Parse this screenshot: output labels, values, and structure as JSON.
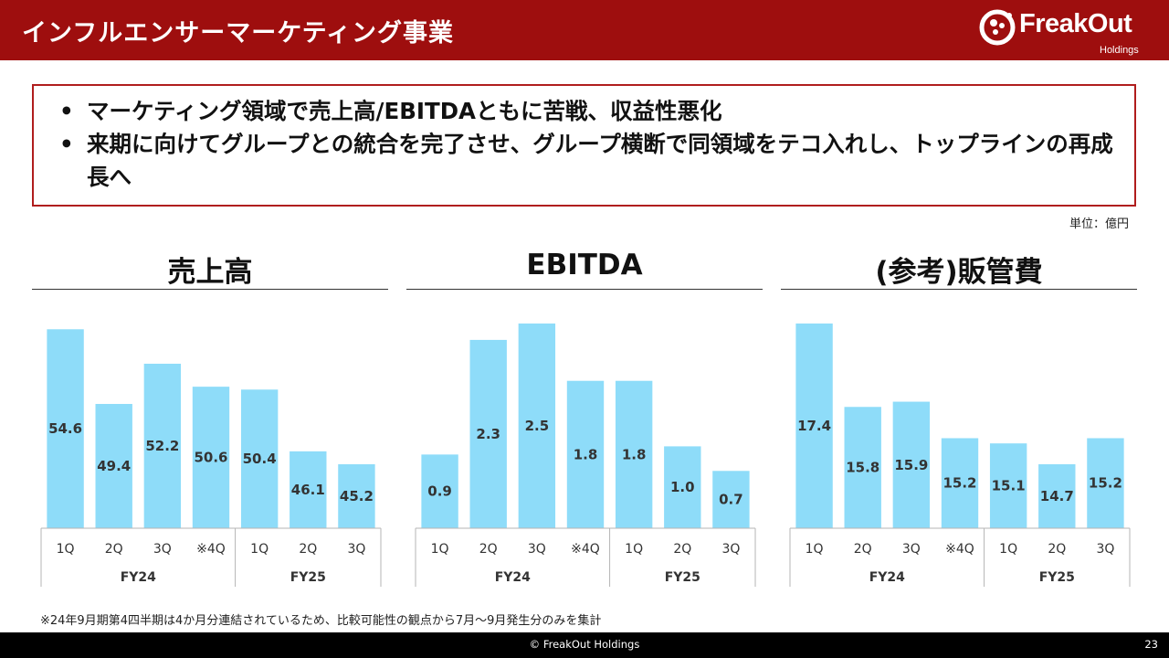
{
  "header": {
    "title": "インフルエンサーマーケティング事業"
  },
  "logo": {
    "name": "FreakOut",
    "sub": "Holdings"
  },
  "summary": {
    "bullets": [
      "マーケティング領域で売上高/EBITDAともに苦戦、収益性悪化",
      "来期に向けてグループとの統合を完了させ、グループ横断で同領域をテコ入れし、トップラインの再成長へ"
    ]
  },
  "unit_label": "単位：億円",
  "colors": {
    "bar": "#8edcf9",
    "header": "#9e0e0e",
    "frame": "#b01d1d"
  },
  "chart_data": [
    {
      "type": "bar",
      "title": "売上高",
      "categories": [
        "1Q",
        "2Q",
        "3Q",
        "※4Q",
        "1Q",
        "2Q",
        "3Q"
      ],
      "groups": [
        {
          "label": "FY24",
          "count": 4
        },
        {
          "label": "FY25",
          "count": 3
        }
      ],
      "values": [
        54.6,
        49.4,
        52.2,
        50.6,
        50.4,
        46.1,
        45.2
      ],
      "ylim": [
        0,
        55
      ]
    },
    {
      "type": "bar",
      "title": "EBITDA",
      "categories": [
        "1Q",
        "2Q",
        "3Q",
        "※4Q",
        "1Q",
        "2Q",
        "3Q"
      ],
      "groups": [
        {
          "label": "FY24",
          "count": 4
        },
        {
          "label": "FY25",
          "count": 3
        }
      ],
      "values": [
        0.9,
        2.3,
        2.5,
        1.8,
        1.8,
        1.0,
        0.7
      ],
      "ylim": [
        0,
        2.5
      ]
    },
    {
      "type": "bar",
      "title": "(参考)販管費",
      "categories": [
        "1Q",
        "2Q",
        "3Q",
        "※4Q",
        "1Q",
        "2Q",
        "3Q"
      ],
      "groups": [
        {
          "label": "FY24",
          "count": 4
        },
        {
          "label": "FY25",
          "count": 3
        }
      ],
      "values": [
        17.4,
        15.8,
        15.9,
        15.2,
        15.1,
        14.7,
        15.2
      ],
      "ylim": [
        0,
        17.4
      ]
    }
  ],
  "footnote": "※24年9月期第4四半期は4か月分連結されているため、比較可能性の観点から7月～9月発生分のみを集計",
  "footer": {
    "copyright": "© FreakOut Holdings",
    "page": "23"
  }
}
